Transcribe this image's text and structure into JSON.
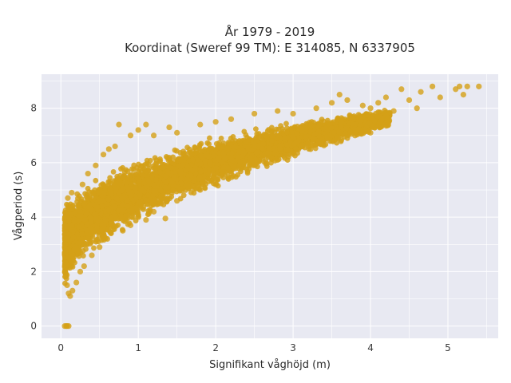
{
  "chart_data": {
    "type": "scatter",
    "title_line1": "År 1979 - 2019",
    "title_line2": "Koordinat (Sweref 99 TM): E 314085, N 6337905",
    "xlabel": "Signifikant våghöjd (m)",
    "ylabel": "Vågperiod (s)",
    "xlim": [
      -0.25,
      5.65
    ],
    "ylim": [
      -0.45,
      9.25
    ],
    "xticks": [
      0,
      1,
      2,
      3,
      4,
      5
    ],
    "xtick_labels": [
      "0",
      "1",
      "2",
      "3",
      "4",
      "5"
    ],
    "yticks": [
      0,
      2,
      4,
      6,
      8
    ],
    "ytick_labels": [
      "0",
      "2",
      "4",
      "6",
      "8"
    ],
    "grid": true,
    "marker_color": "#d4a017",
    "series": [
      {
        "points": [
          [
            0.05,
            0.0
          ],
          [
            0.07,
            0.0
          ],
          [
            0.08,
            0.0
          ],
          [
            0.1,
            0.0
          ],
          [
            0.08,
            1.5
          ],
          [
            0.1,
            1.2
          ],
          [
            0.12,
            1.1
          ],
          [
            0.15,
            1.3
          ],
          [
            0.06,
            2.4
          ],
          [
            0.1,
            3.4
          ],
          [
            0.09,
            4.7
          ],
          [
            0.14,
            4.9
          ],
          [
            0.2,
            1.6
          ],
          [
            0.25,
            2.0
          ],
          [
            0.3,
            2.2
          ],
          [
            0.4,
            2.6
          ],
          [
            0.5,
            2.9
          ],
          [
            0.6,
            3.2
          ],
          [
            0.22,
            4.0
          ],
          [
            0.28,
            5.2
          ],
          [
            0.35,
            5.6
          ],
          [
            0.45,
            5.9
          ],
          [
            0.55,
            6.3
          ],
          [
            0.62,
            6.5
          ],
          [
            0.7,
            6.6
          ],
          [
            0.8,
            3.5
          ],
          [
            0.9,
            3.7
          ],
          [
            1.0,
            4.0
          ],
          [
            1.1,
            3.9
          ],
          [
            1.2,
            4.2
          ],
          [
            1.35,
            3.95
          ],
          [
            1.5,
            4.6
          ],
          [
            0.75,
            7.4
          ],
          [
            0.9,
            7.0
          ],
          [
            1.0,
            7.2
          ],
          [
            1.1,
            7.4
          ],
          [
            1.2,
            7.0
          ],
          [
            1.4,
            7.3
          ],
          [
            1.5,
            7.1
          ],
          [
            1.8,
            5.0
          ],
          [
            2.0,
            5.2
          ],
          [
            2.2,
            5.6
          ],
          [
            2.5,
            5.9
          ],
          [
            2.8,
            6.1
          ],
          [
            1.8,
            7.4
          ],
          [
            2.0,
            7.5
          ],
          [
            2.2,
            7.6
          ],
          [
            2.5,
            7.8
          ],
          [
            2.8,
            7.9
          ],
          [
            3.0,
            6.4
          ],
          [
            3.2,
            6.6
          ],
          [
            3.5,
            6.8
          ],
          [
            3.8,
            7.0
          ],
          [
            4.0,
            7.1
          ],
          [
            3.0,
            7.8
          ],
          [
            3.3,
            8.0
          ],
          [
            3.5,
            8.2
          ],
          [
            3.6,
            8.5
          ],
          [
            3.7,
            8.3
          ],
          [
            3.9,
            8.1
          ],
          [
            4.0,
            8.0
          ],
          [
            4.1,
            8.2
          ],
          [
            4.2,
            8.4
          ],
          [
            4.3,
            7.9
          ],
          [
            4.4,
            8.7
          ],
          [
            4.5,
            8.3
          ],
          [
            4.6,
            8.0
          ],
          [
            4.65,
            8.6
          ],
          [
            4.8,
            8.8
          ],
          [
            4.9,
            8.4
          ],
          [
            5.1,
            8.7
          ],
          [
            5.15,
            8.8
          ],
          [
            5.25,
            8.8
          ],
          [
            5.2,
            8.5
          ],
          [
            5.4,
            8.8
          ]
        ]
      }
    ]
  }
}
